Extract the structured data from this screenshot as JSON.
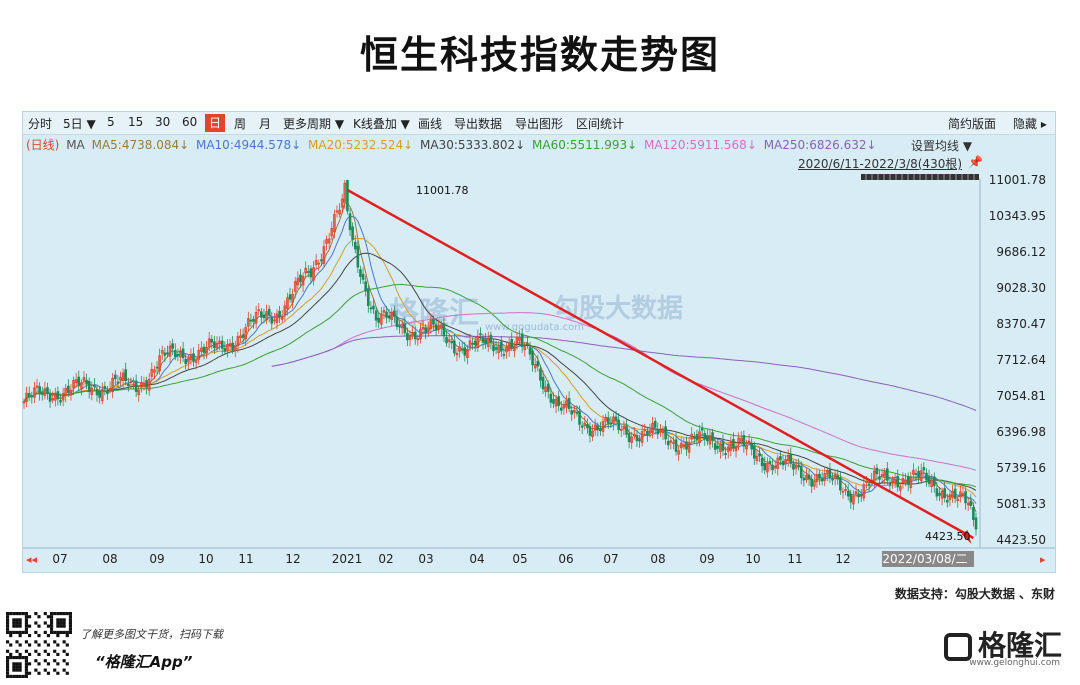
{
  "title": "恒生科技指数走势图",
  "toolbar": [
    "分时",
    "5日 ▼",
    "5",
    "15",
    "30",
    "60",
    "日",
    "周",
    "月",
    "更多周期 ▼",
    "K线叠加 ▼",
    "画线",
    "导出数据",
    "导出图形",
    "区间统计"
  ],
  "toolbar_right": [
    "简约版面",
    "隐藏 ▸"
  ],
  "ma_legend": [
    {
      "text": "(日线)",
      "color": "#e0462e"
    },
    {
      "text": "MA",
      "color": "#555555"
    },
    {
      "text": "MA5:4738.084↓",
      "color": "#9a7a3e"
    },
    {
      "text": "MA10:4944.578↓",
      "color": "#4a78c8"
    },
    {
      "text": "MA20:5232.524↓",
      "color": "#d79c2b"
    },
    {
      "text": "MA30:5333.802↓",
      "color": "#444444"
    },
    {
      "text": "MA60:5511.993↓",
      "color": "#3aa03a"
    },
    {
      "text": "MA120:5911.568↓",
      "color": "#d070c8"
    },
    {
      "text": "MA250:6826.632↓",
      "color": "#8a60b8"
    }
  ],
  "settings_label": "设置均线 ▼",
  "range_label": "2020/6/11-2022/3/8(430根)",
  "source_text": "数据支持：勾股大数据 、东财",
  "watermark": {
    "brand": "格隆汇",
    "sub": "勾股大数据",
    "url": "www.gogudata.com"
  },
  "footer": {
    "promo": "了解更多图文干货，扫码下载",
    "app": "“格隆汇App”",
    "brand": "格隆汇",
    "url": "www.gelonghui.com"
  },
  "colors": {
    "up": "#e0462e",
    "down": "#1f8a5a",
    "trend": "#e02020",
    "panel": "#d8ecf5"
  },
  "chart_data": {
    "type": "candlestick",
    "y_ticks": [
      11001.78,
      10343.95,
      9686.12,
      9028.3,
      8370.47,
      7712.64,
      7054.81,
      6396.98,
      5739.16,
      5081.33,
      4423.5
    ],
    "x_ticks": [
      "07",
      "08",
      "09",
      "10",
      "11",
      "12",
      "2021",
      "02",
      "03",
      "04",
      "05",
      "06",
      "07",
      "08",
      "09",
      "10",
      "11",
      "12",
      "2022/03/08/二"
    ],
    "ylim": [
      4423.5,
      11001.78
    ],
    "high_annotation": "11001.78",
    "low_annotation": "4423.50",
    "close_anchors": [
      [
        0,
        6950
      ],
      [
        12,
        7150
      ],
      [
        25,
        7200
      ],
      [
        35,
        7300
      ],
      [
        42,
        7180
      ],
      [
        52,
        7700
      ],
      [
        62,
        7850
      ],
      [
        75,
        7900
      ],
      [
        85,
        8300
      ],
      [
        97,
        8600
      ],
      [
        110,
        9300
      ],
      [
        118,
        10200
      ],
      [
        123,
        10600
      ],
      [
        126,
        9800
      ],
      [
        135,
        8500
      ],
      [
        145,
        8300
      ],
      [
        160,
        8200
      ],
      [
        170,
        7900
      ],
      [
        180,
        8050
      ],
      [
        190,
        7950
      ],
      [
        197,
        7600
      ],
      [
        205,
        6800
      ],
      [
        220,
        6500
      ],
      [
        230,
        6450
      ],
      [
        245,
        6300
      ],
      [
        255,
        6200
      ],
      [
        265,
        6250
      ],
      [
        275,
        6100
      ],
      [
        285,
        5900
      ],
      [
        295,
        5700
      ],
      [
        305,
        5600
      ],
      [
        315,
        5300
      ],
      [
        325,
        5450
      ],
      [
        335,
        5600
      ],
      [
        345,
        5500
      ],
      [
        355,
        5300
      ],
      [
        362,
        5000
      ],
      [
        365,
        4600
      ]
    ],
    "ma_series": [
      {
        "label": "MA5",
        "color": "#9a7a3e",
        "period": 5
      },
      {
        "label": "MA10",
        "color": "#4a78c8",
        "period": 10
      },
      {
        "label": "MA20",
        "color": "#d79c2b",
        "period": 20
      },
      {
        "label": "MA30",
        "color": "#444444",
        "period": 30
      },
      {
        "label": "MA60",
        "color": "#3aa03a",
        "period": 60
      },
      {
        "label": "MA120",
        "color": "#d070c8",
        "period": 120
      },
      {
        "label": "MA250",
        "color": "#8a60b8",
        "period": 250
      }
    ],
    "trend_line": {
      "from": {
        "date": "2021-02",
        "value": 11001.78
      },
      "to": {
        "date": "2022-03-08",
        "value": 4423.5
      }
    }
  }
}
